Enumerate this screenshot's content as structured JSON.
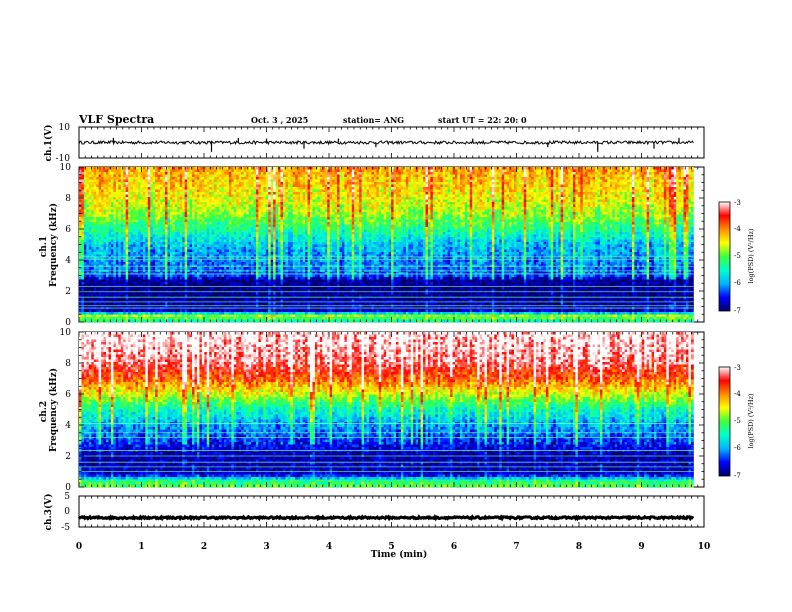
{
  "header": {
    "title": "VLF Spectra",
    "date": "Oct. 3  , 2025",
    "station": "station= ANG",
    "start": "start  UT  =   22: 20: 0"
  },
  "colorbar": {
    "label": "log(PSD) (V²/Hz)",
    "ticks": [
      "-3",
      "-4",
      "-5",
      "-6",
      "-7"
    ],
    "stops": [
      "#000066",
      "#0000ff",
      "#00b4ff",
      "#00ffcc",
      "#3cff3c",
      "#ffff00",
      "#ff8c00",
      "#ff0000",
      "#ffffff"
    ]
  },
  "chart_data": [
    {
      "type": "line",
      "panel": "ch1_waveform",
      "ylabel": "ch.1(V)",
      "ylim": [
        -10,
        10
      ],
      "yticks": [
        "10",
        "-10"
      ],
      "x_range": [
        0,
        9.83
      ],
      "baseline": 0,
      "noise_amplitude": 1,
      "spikes": [
        {
          "t": 0.55,
          "v": 3
        },
        {
          "t": 2.12,
          "v": -6
        },
        {
          "t": 2.55,
          "v": 3
        },
        {
          "t": 3.0,
          "v": 2.5
        },
        {
          "t": 3.6,
          "v": -4
        },
        {
          "t": 4.15,
          "v": 2.5
        },
        {
          "t": 4.75,
          "v": -3
        },
        {
          "t": 6.3,
          "v": 2.5
        },
        {
          "t": 7.5,
          "v": -3
        },
        {
          "t": 8.3,
          "v": -6
        },
        {
          "t": 9.2,
          "v": -4
        },
        {
          "t": 9.6,
          "v": 3
        }
      ]
    },
    {
      "type": "heatmap",
      "panel": "ch1_spectrogram",
      "ylabel": "ch.1\nFrequency  (kHz)",
      "ylim": [
        0,
        10
      ],
      "yticks": [
        "0",
        "2",
        "4",
        "6",
        "8",
        "10"
      ],
      "x_range": [
        0,
        9.83
      ],
      "zlim": [
        -7,
        -3
      ],
      "profile_log_psd": [
        {
          "f": 0,
          "z": -5.5
        },
        {
          "f": 0.4,
          "z": -4.8
        },
        {
          "f": 0.7,
          "z": -6.7
        },
        {
          "f": 1.5,
          "z": -6.9
        },
        {
          "f": 2.0,
          "z": -6.9
        },
        {
          "f": 2.7,
          "z": -6.9
        },
        {
          "f": 3.0,
          "z": -6.3
        },
        {
          "f": 4.0,
          "z": -6.1
        },
        {
          "f": 5.0,
          "z": -5.9
        },
        {
          "f": 6.0,
          "z": -5.3
        },
        {
          "f": 7.0,
          "z": -4.8
        },
        {
          "f": 8.0,
          "z": -4.5
        },
        {
          "f": 9.0,
          "z": -4.3
        },
        {
          "f": 10.0,
          "z": -4.1
        }
      ],
      "lines_khz": [
        0.9,
        1.05,
        1.3,
        1.6,
        1.95,
        2.3,
        3.1,
        3.3,
        3.6,
        4.05,
        4.2
      ]
    },
    {
      "type": "heatmap",
      "panel": "ch2_spectrogram",
      "ylabel": "ch.2\nFrequency  (kHz)",
      "ylim": [
        0,
        10
      ],
      "yticks": [
        "0",
        "2",
        "4",
        "6",
        "8",
        "10"
      ],
      "x_range": [
        0,
        9.83
      ],
      "zlim": [
        -7,
        -3
      ],
      "profile_log_psd": [
        {
          "f": 0,
          "z": -5.0
        },
        {
          "f": 0.4,
          "z": -5.3
        },
        {
          "f": 0.8,
          "z": -6.7
        },
        {
          "f": 2.0,
          "z": -6.8
        },
        {
          "f": 3.0,
          "z": -6.4
        },
        {
          "f": 4.0,
          "z": -6.0
        },
        {
          "f": 5.0,
          "z": -5.5
        },
        {
          "f": 6.0,
          "z": -4.6
        },
        {
          "f": 7.0,
          "z": -3.8
        },
        {
          "f": 8.0,
          "z": -3.3
        },
        {
          "f": 9.0,
          "z": -3.1
        },
        {
          "f": 10.0,
          "z": -3.0
        }
      ],
      "lines_khz": [
        1.0,
        1.3,
        1.6,
        2.0,
        2.35,
        3.2,
        3.5,
        4.1
      ]
    },
    {
      "type": "line",
      "panel": "ch3_waveform",
      "ylabel": "ch.3(V)",
      "ylim": [
        -5,
        5
      ],
      "yticks": [
        "5",
        "0",
        "-5"
      ],
      "x_range": [
        0,
        9.83
      ],
      "baseline": -2,
      "noise_amplitude": 0.3,
      "spikes": []
    }
  ],
  "xaxis": {
    "label": "Time  (min)",
    "ticks": [
      "0",
      "1",
      "2",
      "3",
      "4",
      "5",
      "6",
      "7",
      "8",
      "9",
      "10"
    ],
    "range": [
      0,
      10
    ]
  }
}
